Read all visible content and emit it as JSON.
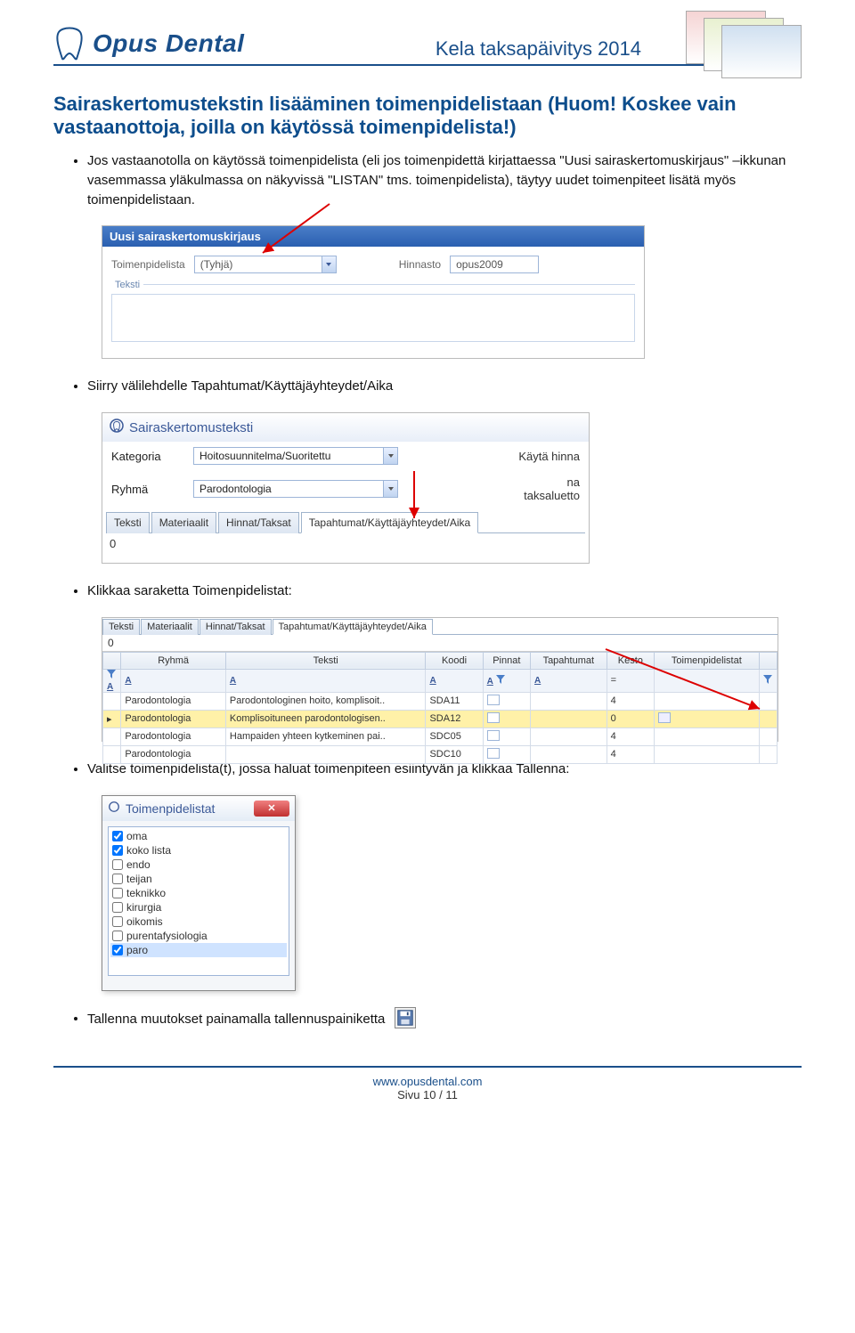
{
  "header": {
    "brand": "Opus Dental",
    "title": "Kela taksapäivitys 2014"
  },
  "section_title": "Sairaskertomustekstin lisääminen toimenpidelistaan (Huom! Koskee vain vastaanottoja, joilla on käytössä toimenpidelista!)",
  "bullets": {
    "b1": "Jos vastaanotolla on käytössä toimenpidelista (eli jos toimenpidettä kirjattaessa \"Uusi sairaskertomuskirjaus\" –ikkunan vasemmassa yläkulmassa on näkyvissä \"LISTAN\" tms. toimenpidelista), täytyy uudet toimenpiteet lisätä myös toimenpidelistaan.",
    "b2": "Siirry välilehdelle Tapahtumat/Käyttäjäyhteydet/Aika",
    "b3": "Klikkaa saraketta Toimenpidelistat:",
    "b4": "Valitse toimenpidelista(t), jossa haluat toimenpiteen esiintyvän ja klikkaa Tallenna:",
    "b5": "Tallenna muutokset painamalla tallennuspainiketta"
  },
  "scr1": {
    "title": "Uusi sairaskertomuskirjaus",
    "lbl_tpl": "Toimenpidelista",
    "dd1_value": "(Tyhjä)",
    "lbl_hinnasto": "Hinnasto",
    "dd2_value": "opus2009",
    "group_label": "Teksti"
  },
  "scr2": {
    "title": "Sairaskertomusteksti",
    "row1_lbl": "Kategoria",
    "row1_val": "Hoitosuunnitelma/Suoritettu",
    "row1_rt": "Käytä hinna",
    "row2_lbl": "Ryhmä",
    "row2_val": "Parodontologia",
    "row2_rt1": "na",
    "row2_rt2": "taksaluetto",
    "tabs": [
      "Teksti",
      "Materiaalit",
      "Hinnat/Taksat",
      "Tapahtumat/Käyttäjäyhteydet/Aika"
    ],
    "zero": "0"
  },
  "scr3": {
    "tabs": [
      "Teksti",
      "Materiaalit",
      "Hinnat/Taksat",
      "Tapahtumat/Käyttäjäyhteydet/Aika"
    ],
    "zero": "0",
    "columns": [
      "",
      "Ryhmä",
      "Teksti",
      "Koodi",
      "Pinnat",
      "Tapahtumat",
      "Kesto",
      "Toimenpidelistat",
      ""
    ],
    "filter_eq": "=",
    "rows": [
      {
        "ryhma": "Parodontologia",
        "teksti": "Parodontologinen hoito, komplisoit..",
        "koodi": "SDA11",
        "pinnat": "",
        "tap": "",
        "kesto": "4",
        "tp": ""
      },
      {
        "ryhma": "Parodontologia",
        "teksti": "Komplisoituneen parodontologisen..",
        "koodi": "SDA12",
        "pinnat": "",
        "tap": "",
        "kesto": "0",
        "tp": "",
        "highlight": true,
        "caret": true
      },
      {
        "ryhma": "Parodontologia",
        "teksti": "Hampaiden yhteen kytkeminen pai..",
        "koodi": "SDC05",
        "pinnat": "",
        "tap": "",
        "kesto": "4",
        "tp": ""
      },
      {
        "ryhma": "Parodontologia",
        "teksti": "",
        "koodi": "SDC10",
        "pinnat": "",
        "tap": "",
        "kesto": "4",
        "tp": ""
      }
    ]
  },
  "scr4": {
    "title": "Toimenpidelistat",
    "items": [
      {
        "label": "oma",
        "checked": true
      },
      {
        "label": "koko lista",
        "checked": true
      },
      {
        "label": "endo",
        "checked": false
      },
      {
        "label": "teijan",
        "checked": false
      },
      {
        "label": "teknikko",
        "checked": false
      },
      {
        "label": "kirurgia",
        "checked": false
      },
      {
        "label": "oikomis",
        "checked": false
      },
      {
        "label": "purentafysiologia",
        "checked": false
      },
      {
        "label": "paro",
        "checked": true,
        "selected": true
      }
    ]
  },
  "footer": {
    "url": "www.opusdental.com",
    "page": "Sivu 10 / 11"
  },
  "colors": {
    "brand": "#1a4f8a",
    "heading": "#0d4d8c",
    "win_title_bg1": "#4a7ec8",
    "win_title_bg2": "#2a5fb0",
    "border_blue": "#9db5d8",
    "highlight_row": "#fff1a8",
    "close_btn1": "#f08080",
    "close_btn2": "#c03030"
  }
}
